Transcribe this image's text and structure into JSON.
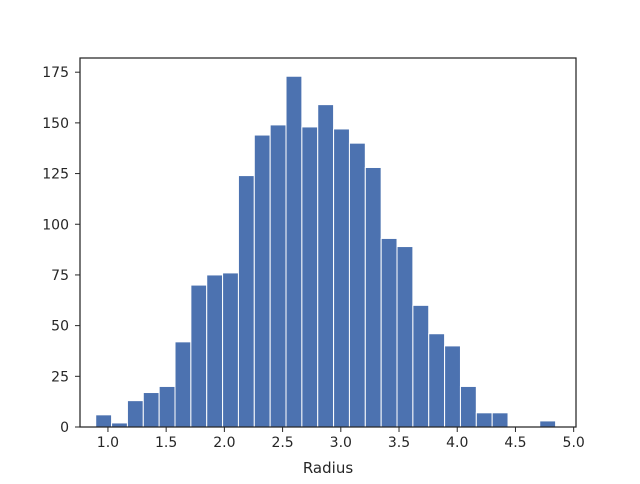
{
  "chart_data": {
    "type": "bar",
    "subtype": "histogram",
    "title": "",
    "xlabel": "Radius",
    "ylabel": "",
    "xlim": [
      0.76,
      5.02
    ],
    "ylim": [
      0,
      182
    ],
    "xticks": [
      "1.0",
      "1.5",
      "2.0",
      "2.5",
      "3.0",
      "3.5",
      "4.0",
      "4.5",
      "5.0"
    ],
    "yticks": [
      "0",
      "25",
      "50",
      "75",
      "100",
      "125",
      "150",
      "175"
    ],
    "bin_start": 0.895,
    "bin_width": 0.1362,
    "values": [
      6,
      2,
      13,
      17,
      20,
      42,
      70,
      75,
      76,
      124,
      144,
      149,
      173,
      148,
      159,
      147,
      140,
      128,
      93,
      89,
      60,
      46,
      40,
      20,
      7,
      7,
      0,
      0,
      3
    ],
    "grid": false,
    "legend": "none",
    "colors": {
      "bar": "#4c72b0",
      "bar_edge": "#ffffff",
      "axes": "#262626"
    }
  }
}
